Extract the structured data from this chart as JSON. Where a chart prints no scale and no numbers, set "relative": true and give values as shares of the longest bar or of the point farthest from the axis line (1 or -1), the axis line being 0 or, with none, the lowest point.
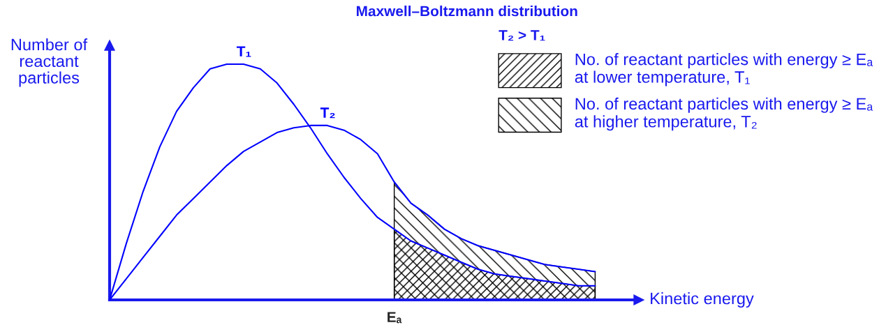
{
  "chart_data": {
    "type": "line",
    "title": "Maxwell–Boltzmann distribution",
    "xlabel": "Kinetic energy",
    "ylabel": "Number of\nreactant\nparticles",
    "legend_title": "T₂ > T₁",
    "relative": true,
    "legend": "top right",
    "categories": [
      null,
      null,
      null,
      null,
      null,
      null,
      null,
      null,
      null,
      null,
      null,
      null,
      null,
      null,
      null,
      null,
      null,
      null,
      null,
      null,
      null,
      null,
      null,
      null,
      null,
      null,
      null,
      null,
      null,
      null
    ],
    "annotations": [
      {
        "text": "Eₐ",
        "y": 0
      }
    ],
    "series": [
      {
        "name": "T₁",
        "color": "#0000ff",
        "values": [
          0,
          0.24,
          0.46,
          0.65,
          0.8,
          0.9,
          0.98,
          1,
          1,
          0.98,
          0.92,
          0.83,
          0.73,
          0.62,
          0.52,
          0.43,
          0.35,
          0.3,
          0.25,
          0.22,
          0.19,
          0.16,
          0.13,
          0.11,
          0.1,
          0.09,
          0.08,
          0.07,
          0.06,
          0.06
        ]
      },
      {
        "name": "T₂",
        "color": "#0000ff",
        "values": [
          0,
          0.09,
          0.18,
          0.27,
          0.36,
          0.43,
          0.5,
          0.57,
          0.63,
          0.67,
          0.71,
          0.73,
          0.74,
          0.74,
          0.72,
          0.68,
          0.62,
          0.5,
          0.41,
          0.36,
          0.3,
          0.26,
          0.23,
          0.21,
          0.19,
          0.17,
          0.15,
          0.14,
          0.13,
          0.12
        ]
      },
      {
        "type": "area",
        "name": "No. of reactant particles with energy ≥ Eₐ\nat lower temperature, T₁",
        "color": "#000000",
        "values": [
          null,
          null,
          null,
          null,
          null,
          null,
          null,
          null,
          null,
          null,
          null,
          null,
          null,
          null,
          null,
          null,
          null,
          0.3,
          0.25,
          0.22,
          0.19,
          0.16,
          0.13,
          0.11,
          0.1,
          0.09,
          0.08,
          0.07,
          0.06,
          0.06
        ]
      },
      {
        "type": "area",
        "name": "No. of reactant particles with energy ≥ Eₐ\nat higher temperature, T₂",
        "color": "#000000",
        "values": [
          null,
          null,
          null,
          null,
          null,
          null,
          null,
          null,
          null,
          null,
          null,
          null,
          null,
          null,
          null,
          null,
          null,
          0.5,
          0.41,
          0.36,
          0.3,
          0.26,
          0.23,
          0.21,
          0.19,
          0.17,
          0.15,
          0.14,
          0.13,
          0.12
        ]
      }
    ]
  }
}
